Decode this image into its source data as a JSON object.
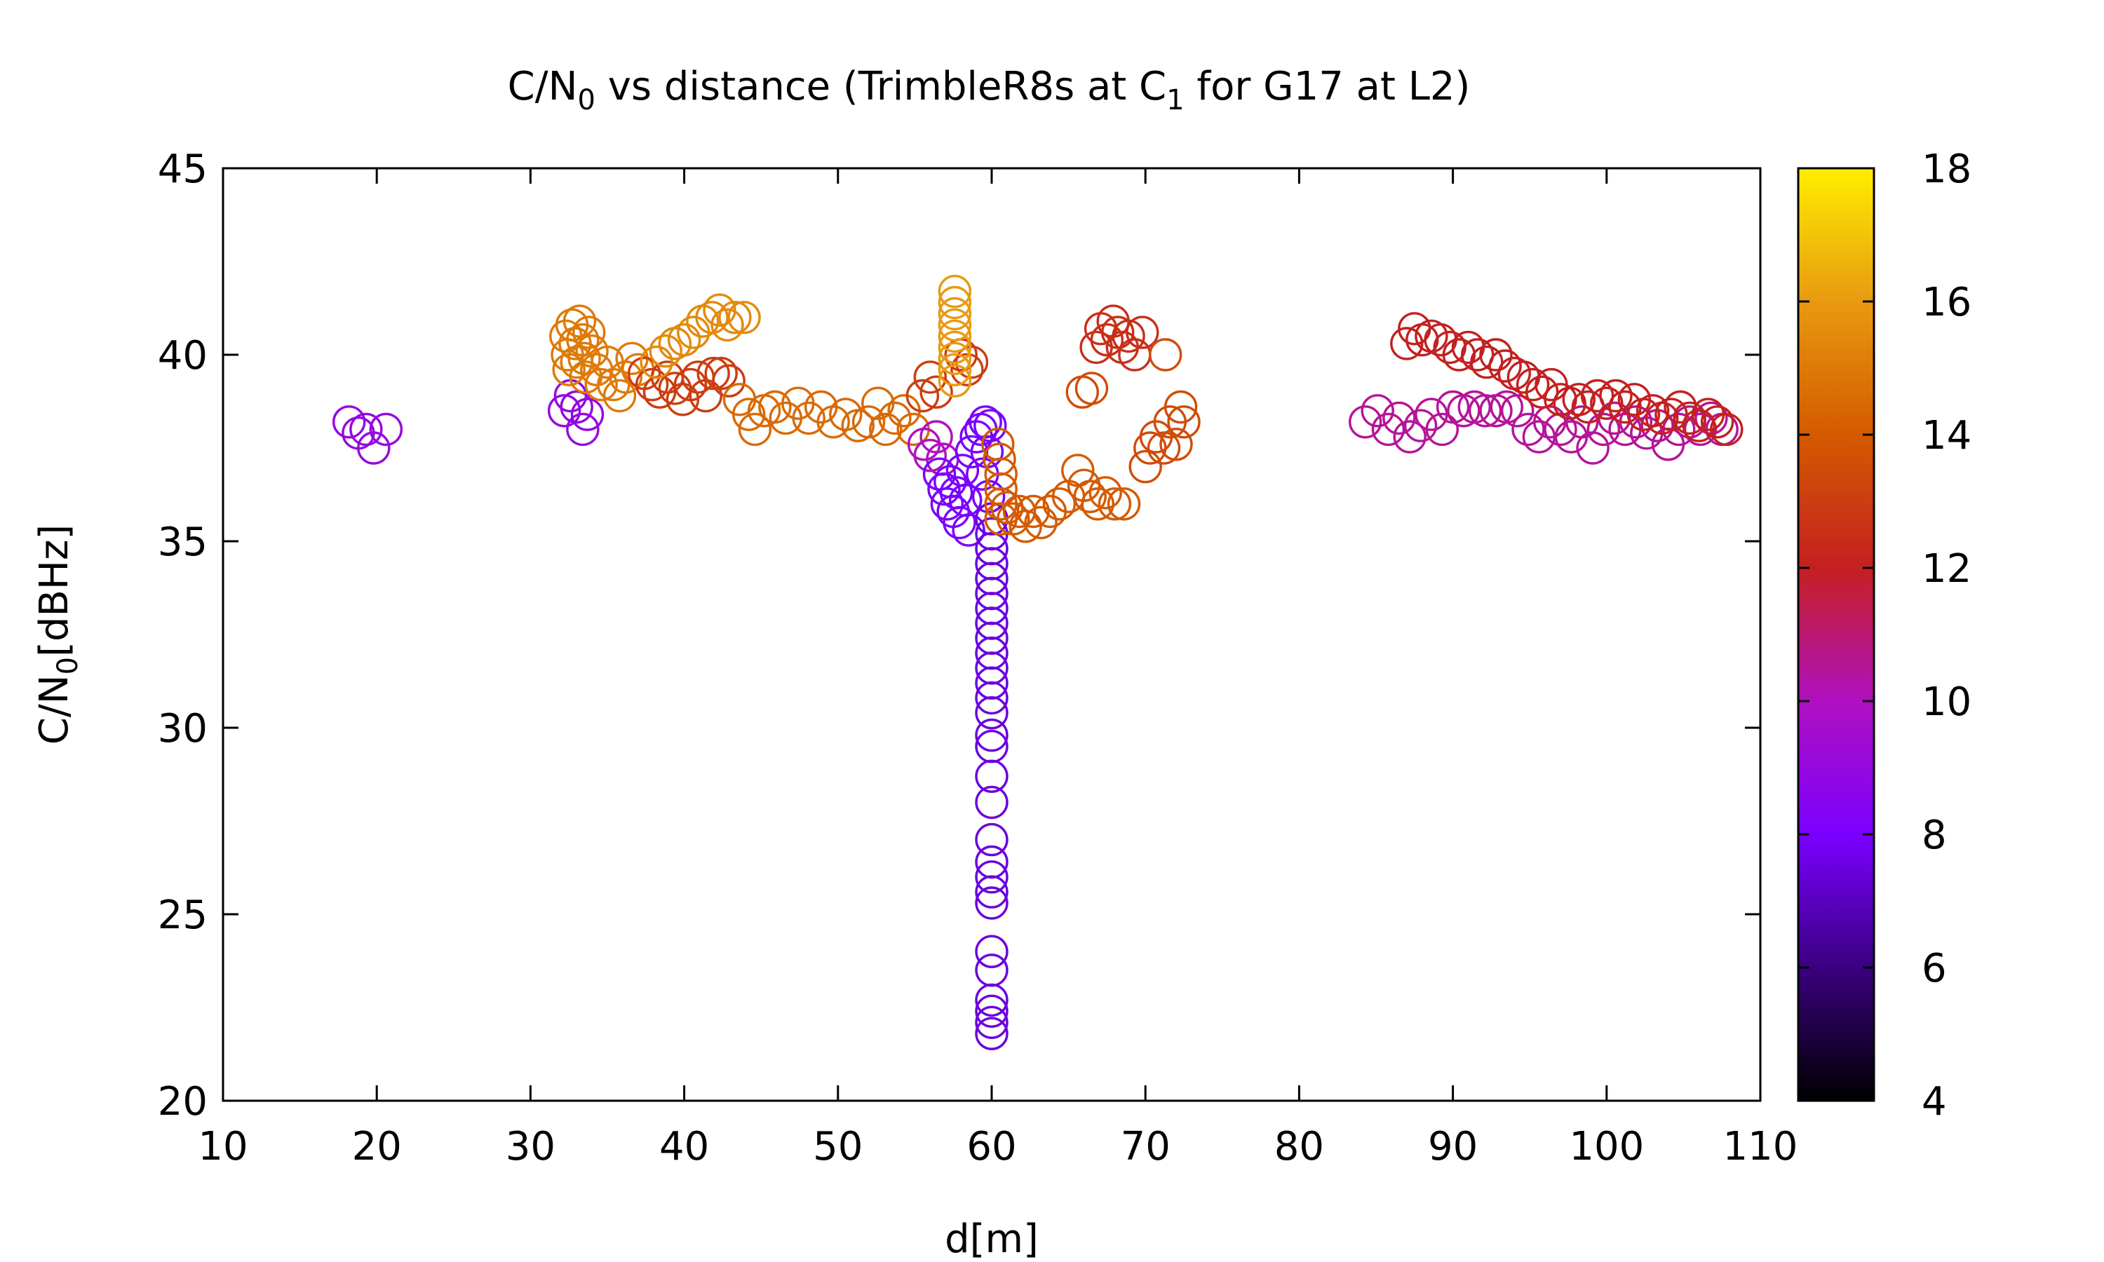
{
  "chart_data": {
    "type": "scatter",
    "title": {
      "prefix": "C/N",
      "prefix_sub": "0",
      "middle": " vs distance (TrimbleR8s at C",
      "middle_sub": "1",
      "suffix": " for G17 at L2)"
    },
    "xlabel": "d[m]",
    "ylabel": {
      "main": "C/N",
      "sub": "0",
      "rest": "[dBHz]"
    },
    "xlim": [
      10,
      110
    ],
    "ylim": [
      20,
      45
    ],
    "xticks": [
      "10",
      "20",
      "30",
      "40",
      "50",
      "60",
      "70",
      "80",
      "90",
      "100",
      "110"
    ],
    "yticks": [
      "20",
      "25",
      "30",
      "35",
      "40",
      "45"
    ],
    "colorbar": {
      "range": [
        4,
        18
      ],
      "ticks": [
        "4",
        "6",
        "8",
        "10",
        "12",
        "14",
        "16",
        "18"
      ],
      "palette": [
        "#000000",
        "#3a0080",
        "#7a00ff",
        "#b010c0",
        "#c42020",
        "#d45a00",
        "#e89a10",
        "#ffee00"
      ]
    },
    "grid": false,
    "legend": "none",
    "marker": "open-circle",
    "points": [
      {
        "x": 18.2,
        "y": 38.2,
        "c": 9.0
      },
      {
        "x": 18.8,
        "y": 37.9,
        "c": 9.0
      },
      {
        "x": 19.3,
        "y": 38.0,
        "c": 9.0
      },
      {
        "x": 19.8,
        "y": 37.5,
        "c": 9.0
      },
      {
        "x": 20.6,
        "y": 38.0,
        "c": 9.0
      },
      {
        "x": 32.2,
        "y": 38.5,
        "c": 9.0
      },
      {
        "x": 32.6,
        "y": 38.9,
        "c": 9.0
      },
      {
        "x": 33.0,
        "y": 38.6,
        "c": 9.0
      },
      {
        "x": 33.4,
        "y": 38.0,
        "c": 9.0
      },
      {
        "x": 33.7,
        "y": 38.4,
        "c": 9.0
      },
      {
        "x": 32.3,
        "y": 40.5,
        "c": 15.0
      },
      {
        "x": 32.4,
        "y": 40.0,
        "c": 15.0
      },
      {
        "x": 32.5,
        "y": 39.6,
        "c": 15.0
      },
      {
        "x": 32.7,
        "y": 40.8,
        "c": 15.0
      },
      {
        "x": 32.9,
        "y": 40.3,
        "c": 15.0
      },
      {
        "x": 33.0,
        "y": 39.8,
        "c": 15.0
      },
      {
        "x": 33.2,
        "y": 40.9,
        "c": 15.0
      },
      {
        "x": 33.4,
        "y": 40.4,
        "c": 15.0
      },
      {
        "x": 33.5,
        "y": 39.9,
        "c": 15.0
      },
      {
        "x": 33.6,
        "y": 39.4,
        "c": 15.0
      },
      {
        "x": 33.8,
        "y": 40.6,
        "c": 15.0
      },
      {
        "x": 34.0,
        "y": 40.1,
        "c": 15.0
      },
      {
        "x": 34.3,
        "y": 39.6,
        "c": 15.0
      },
      {
        "x": 34.6,
        "y": 39.2,
        "c": 15.0
      },
      {
        "x": 35.0,
        "y": 39.8,
        "c": 15.0
      },
      {
        "x": 35.4,
        "y": 39.2,
        "c": 15.0
      },
      {
        "x": 35.8,
        "y": 38.9,
        "c": 15.0
      },
      {
        "x": 36.2,
        "y": 39.4,
        "c": 15.0
      },
      {
        "x": 36.6,
        "y": 39.9,
        "c": 15.0
      },
      {
        "x": 37.0,
        "y": 39.6,
        "c": 15.0
      },
      {
        "x": 37.4,
        "y": 39.5,
        "c": 13.0
      },
      {
        "x": 37.9,
        "y": 39.2,
        "c": 13.0
      },
      {
        "x": 38.4,
        "y": 39.0,
        "c": 13.0
      },
      {
        "x": 38.9,
        "y": 39.4,
        "c": 13.0
      },
      {
        "x": 39.4,
        "y": 39.1,
        "c": 13.0
      },
      {
        "x": 39.9,
        "y": 38.8,
        "c": 13.0
      },
      {
        "x": 40.4,
        "y": 39.2,
        "c": 13.0
      },
      {
        "x": 40.9,
        "y": 39.4,
        "c": 13.0
      },
      {
        "x": 41.4,
        "y": 38.9,
        "c": 13.0
      },
      {
        "x": 41.9,
        "y": 39.5,
        "c": 13.0
      },
      {
        "x": 42.4,
        "y": 39.5,
        "c": 13.0
      },
      {
        "x": 42.9,
        "y": 39.3,
        "c": 13.0
      },
      {
        "x": 38.2,
        "y": 39.8,
        "c": 15.5
      },
      {
        "x": 38.8,
        "y": 40.1,
        "c": 15.5
      },
      {
        "x": 39.4,
        "y": 40.3,
        "c": 15.5
      },
      {
        "x": 40.0,
        "y": 40.4,
        "c": 15.5
      },
      {
        "x": 40.6,
        "y": 40.6,
        "c": 15.5
      },
      {
        "x": 41.2,
        "y": 40.9,
        "c": 15.5
      },
      {
        "x": 41.8,
        "y": 41.0,
        "c": 15.5
      },
      {
        "x": 42.3,
        "y": 41.2,
        "c": 15.5
      },
      {
        "x": 42.8,
        "y": 40.8,
        "c": 15.5
      },
      {
        "x": 43.3,
        "y": 41.0,
        "c": 15.5
      },
      {
        "x": 43.9,
        "y": 41.0,
        "c": 15.5
      },
      {
        "x": 43.6,
        "y": 38.8,
        "c": 14.5
      },
      {
        "x": 44.2,
        "y": 38.4,
        "c": 14.5
      },
      {
        "x": 44.6,
        "y": 38.0,
        "c": 14.5
      },
      {
        "x": 45.2,
        "y": 38.5,
        "c": 14.5
      },
      {
        "x": 45.9,
        "y": 38.6,
        "c": 14.5
      },
      {
        "x": 46.6,
        "y": 38.3,
        "c": 14.5
      },
      {
        "x": 47.4,
        "y": 38.7,
        "c": 14.5
      },
      {
        "x": 48.1,
        "y": 38.3,
        "c": 14.5
      },
      {
        "x": 48.9,
        "y": 38.6,
        "c": 14.5
      },
      {
        "x": 49.7,
        "y": 38.2,
        "c": 14.5
      },
      {
        "x": 50.5,
        "y": 38.4,
        "c": 14.5
      },
      {
        "x": 51.3,
        "y": 38.1,
        "c": 14.5
      },
      {
        "x": 52.0,
        "y": 38.2,
        "c": 14.5
      },
      {
        "x": 52.6,
        "y": 38.7,
        "c": 14.5
      },
      {
        "x": 53.1,
        "y": 38.0,
        "c": 14.5
      },
      {
        "x": 53.7,
        "y": 38.3,
        "c": 14.5
      },
      {
        "x": 54.3,
        "y": 38.5,
        "c": 14.5
      },
      {
        "x": 54.9,
        "y": 38.0,
        "c": 14.5
      },
      {
        "x": 55.5,
        "y": 38.9,
        "c": 13.0
      },
      {
        "x": 56.0,
        "y": 39.4,
        "c": 13.0
      },
      {
        "x": 56.4,
        "y": 39.0,
        "c": 13.0
      },
      {
        "x": 58.0,
        "y": 40.0,
        "c": 13.0
      },
      {
        "x": 58.4,
        "y": 39.6,
        "c": 13.0
      },
      {
        "x": 58.7,
        "y": 39.8,
        "c": 13.0
      },
      {
        "x": 57.6,
        "y": 41.7,
        "c": 16.0
      },
      {
        "x": 57.6,
        "y": 41.4,
        "c": 16.0
      },
      {
        "x": 57.6,
        "y": 41.1,
        "c": 16.0
      },
      {
        "x": 57.6,
        "y": 40.8,
        "c": 16.0
      },
      {
        "x": 57.6,
        "y": 40.5,
        "c": 16.0
      },
      {
        "x": 57.6,
        "y": 40.2,
        "c": 16.0
      },
      {
        "x": 57.6,
        "y": 39.9,
        "c": 16.0
      },
      {
        "x": 57.6,
        "y": 39.6,
        "c": 16.0
      },
      {
        "x": 57.6,
        "y": 39.3,
        "c": 16.0
      },
      {
        "x": 55.6,
        "y": 37.6,
        "c": 10.0
      },
      {
        "x": 56.0,
        "y": 37.3,
        "c": 10.0
      },
      {
        "x": 56.4,
        "y": 37.8,
        "c": 10.0
      },
      {
        "x": 56.8,
        "y": 37.2,
        "c": 10.0
      },
      {
        "x": 56.6,
        "y": 36.8,
        "c": 8.0
      },
      {
        "x": 56.9,
        "y": 36.4,
        "c": 8.0
      },
      {
        "x": 57.1,
        "y": 36.0,
        "c": 8.0
      },
      {
        "x": 57.3,
        "y": 36.6,
        "c": 8.0
      },
      {
        "x": 57.5,
        "y": 35.8,
        "c": 8.0
      },
      {
        "x": 57.7,
        "y": 36.3,
        "c": 8.0
      },
      {
        "x": 57.9,
        "y": 35.5,
        "c": 8.0
      },
      {
        "x": 58.1,
        "y": 36.9,
        "c": 8.0
      },
      {
        "x": 58.3,
        "y": 36.1,
        "c": 8.0
      },
      {
        "x": 58.5,
        "y": 35.3,
        "c": 8.0
      },
      {
        "x": 58.7,
        "y": 37.4,
        "c": 8.0
      },
      {
        "x": 59.0,
        "y": 37.8,
        "c": 8.0
      },
      {
        "x": 59.3,
        "y": 38.0,
        "c": 8.0
      },
      {
        "x": 59.6,
        "y": 38.2,
        "c": 8.0
      },
      {
        "x": 59.9,
        "y": 38.1,
        "c": 8.0
      },
      {
        "x": 59.7,
        "y": 37.4,
        "c": 8.0
      },
      {
        "x": 59.4,
        "y": 36.8,
        "c": 8.0
      },
      {
        "x": 59.8,
        "y": 36.2,
        "c": 8.0
      },
      {
        "x": 60.0,
        "y": 35.6,
        "c": 7.5
      },
      {
        "x": 60.0,
        "y": 35.2,
        "c": 7.5
      },
      {
        "x": 60.0,
        "y": 34.8,
        "c": 7.5
      },
      {
        "x": 60.0,
        "y": 34.4,
        "c": 7.5
      },
      {
        "x": 60.0,
        "y": 34.0,
        "c": 7.5
      },
      {
        "x": 60.0,
        "y": 33.6,
        "c": 7.5
      },
      {
        "x": 60.0,
        "y": 33.2,
        "c": 7.5
      },
      {
        "x": 60.0,
        "y": 32.8,
        "c": 7.5
      },
      {
        "x": 60.0,
        "y": 32.4,
        "c": 7.5
      },
      {
        "x": 60.0,
        "y": 32.0,
        "c": 7.5
      },
      {
        "x": 60.0,
        "y": 31.6,
        "c": 7.5
      },
      {
        "x": 60.0,
        "y": 31.2,
        "c": 7.5
      },
      {
        "x": 60.0,
        "y": 30.8,
        "c": 7.5
      },
      {
        "x": 60.0,
        "y": 30.4,
        "c": 7.5
      },
      {
        "x": 60.0,
        "y": 29.8,
        "c": 7.5
      },
      {
        "x": 60.0,
        "y": 29.5,
        "c": 7.5
      },
      {
        "x": 60.0,
        "y": 28.7,
        "c": 7.5
      },
      {
        "x": 60.0,
        "y": 28.0,
        "c": 7.5
      },
      {
        "x": 60.0,
        "y": 27.0,
        "c": 7.5
      },
      {
        "x": 60.0,
        "y": 26.4,
        "c": 7.5
      },
      {
        "x": 60.0,
        "y": 26.0,
        "c": 7.5
      },
      {
        "x": 60.0,
        "y": 25.6,
        "c": 7.5
      },
      {
        "x": 60.0,
        "y": 25.3,
        "c": 7.5
      },
      {
        "x": 60.0,
        "y": 24.0,
        "c": 7.5
      },
      {
        "x": 60.0,
        "y": 23.5,
        "c": 7.5
      },
      {
        "x": 60.0,
        "y": 22.7,
        "c": 7.5
      },
      {
        "x": 60.0,
        "y": 22.4,
        "c": 7.5
      },
      {
        "x": 60.0,
        "y": 22.1,
        "c": 7.5
      },
      {
        "x": 60.0,
        "y": 21.8,
        "c": 7.5
      },
      {
        "x": 60.4,
        "y": 37.6,
        "c": 14.0
      },
      {
        "x": 60.5,
        "y": 37.2,
        "c": 14.0
      },
      {
        "x": 60.6,
        "y": 36.8,
        "c": 14.0
      },
      {
        "x": 60.6,
        "y": 36.4,
        "c": 14.0
      },
      {
        "x": 60.6,
        "y": 36.0,
        "c": 14.0
      },
      {
        "x": 60.6,
        "y": 35.6,
        "c": 14.0
      },
      {
        "x": 61.0,
        "y": 35.9,
        "c": 14.0
      },
      {
        "x": 61.4,
        "y": 35.6,
        "c": 14.0
      },
      {
        "x": 61.8,
        "y": 35.8,
        "c": 14.0
      },
      {
        "x": 62.2,
        "y": 35.4,
        "c": 14.0
      },
      {
        "x": 62.7,
        "y": 35.8,
        "c": 14.0
      },
      {
        "x": 63.2,
        "y": 35.5,
        "c": 14.0
      },
      {
        "x": 63.8,
        "y": 35.8,
        "c": 14.0
      },
      {
        "x": 64.4,
        "y": 36.0,
        "c": 14.0
      },
      {
        "x": 65.0,
        "y": 36.2,
        "c": 14.0
      },
      {
        "x": 65.6,
        "y": 36.9,
        "c": 14.0
      },
      {
        "x": 66.0,
        "y": 36.5,
        "c": 14.0
      },
      {
        "x": 66.4,
        "y": 36.2,
        "c": 14.0
      },
      {
        "x": 66.9,
        "y": 36.0,
        "c": 14.0
      },
      {
        "x": 67.4,
        "y": 36.3,
        "c": 14.0
      },
      {
        "x": 68.0,
        "y": 36.0,
        "c": 14.0
      },
      {
        "x": 68.6,
        "y": 36.0,
        "c": 14.0
      },
      {
        "x": 65.9,
        "y": 39.0,
        "c": 13.5
      },
      {
        "x": 66.5,
        "y": 39.1,
        "c": 13.5
      },
      {
        "x": 66.8,
        "y": 40.2,
        "c": 12.5
      },
      {
        "x": 67.1,
        "y": 40.7,
        "c": 12.5
      },
      {
        "x": 67.5,
        "y": 40.4,
        "c": 12.5
      },
      {
        "x": 67.9,
        "y": 40.9,
        "c": 12.5
      },
      {
        "x": 68.2,
        "y": 40.6,
        "c": 12.5
      },
      {
        "x": 68.5,
        "y": 40.2,
        "c": 12.5
      },
      {
        "x": 68.9,
        "y": 40.5,
        "c": 12.5
      },
      {
        "x": 69.3,
        "y": 40.0,
        "c": 12.5
      },
      {
        "x": 69.8,
        "y": 40.6,
        "c": 12.5
      },
      {
        "x": 70.0,
        "y": 37.0,
        "c": 13.5
      },
      {
        "x": 70.3,
        "y": 37.5,
        "c": 13.5
      },
      {
        "x": 70.7,
        "y": 37.8,
        "c": 13.5
      },
      {
        "x": 71.2,
        "y": 37.5,
        "c": 13.5
      },
      {
        "x": 71.6,
        "y": 38.2,
        "c": 13.5
      },
      {
        "x": 72.0,
        "y": 37.6,
        "c": 13.5
      },
      {
        "x": 72.3,
        "y": 38.6,
        "c": 13.5
      },
      {
        "x": 72.5,
        "y": 38.2,
        "c": 13.5
      },
      {
        "x": 71.3,
        "y": 40.0,
        "c": 13.5
      },
      {
        "x": 84.3,
        "y": 38.2,
        "c": 10.5
      },
      {
        "x": 85.1,
        "y": 38.5,
        "c": 10.5
      },
      {
        "x": 85.8,
        "y": 38.0,
        "c": 10.5
      },
      {
        "x": 86.5,
        "y": 38.3,
        "c": 10.5
      },
      {
        "x": 87.2,
        "y": 37.8,
        "c": 10.5
      },
      {
        "x": 87.9,
        "y": 38.1,
        "c": 10.5
      },
      {
        "x": 88.6,
        "y": 38.4,
        "c": 10.5
      },
      {
        "x": 89.3,
        "y": 38.0,
        "c": 10.5
      },
      {
        "x": 90.0,
        "y": 38.6,
        "c": 10.5
      },
      {
        "x": 90.7,
        "y": 38.5,
        "c": 10.5
      },
      {
        "x": 91.4,
        "y": 38.6,
        "c": 10.5
      },
      {
        "x": 92.1,
        "y": 38.5,
        "c": 10.5
      },
      {
        "x": 92.8,
        "y": 38.5,
        "c": 10.5
      },
      {
        "x": 93.5,
        "y": 38.6,
        "c": 10.5
      },
      {
        "x": 94.2,
        "y": 38.5,
        "c": 10.5
      },
      {
        "x": 94.9,
        "y": 38.0,
        "c": 10.5
      },
      {
        "x": 95.6,
        "y": 37.8,
        "c": 10.5
      },
      {
        "x": 96.3,
        "y": 38.2,
        "c": 10.5
      },
      {
        "x": 97.0,
        "y": 38.0,
        "c": 10.5
      },
      {
        "x": 97.7,
        "y": 37.8,
        "c": 10.5
      },
      {
        "x": 98.4,
        "y": 38.2,
        "c": 10.5
      },
      {
        "x": 99.1,
        "y": 37.5,
        "c": 10.5
      },
      {
        "x": 99.8,
        "y": 38.0,
        "c": 10.5
      },
      {
        "x": 100.5,
        "y": 38.3,
        "c": 10.5
      },
      {
        "x": 101.2,
        "y": 38.0,
        "c": 10.5
      },
      {
        "x": 101.9,
        "y": 38.2,
        "c": 10.5
      },
      {
        "x": 102.6,
        "y": 37.9,
        "c": 10.5
      },
      {
        "x": 103.3,
        "y": 38.1,
        "c": 10.5
      },
      {
        "x": 104.0,
        "y": 37.6,
        "c": 10.5
      },
      {
        "x": 104.7,
        "y": 38.0,
        "c": 10.5
      },
      {
        "x": 105.4,
        "y": 38.2,
        "c": 10.5
      },
      {
        "x": 106.1,
        "y": 38.0,
        "c": 10.5
      },
      {
        "x": 106.8,
        "y": 38.3,
        "c": 10.5
      },
      {
        "x": 107.5,
        "y": 38.0,
        "c": 10.5
      },
      {
        "x": 87.0,
        "y": 40.3,
        "c": 12.0
      },
      {
        "x": 87.5,
        "y": 40.7,
        "c": 12.0
      },
      {
        "x": 88.0,
        "y": 40.4,
        "c": 12.0
      },
      {
        "x": 88.6,
        "y": 40.5,
        "c": 12.0
      },
      {
        "x": 89.2,
        "y": 40.4,
        "c": 12.0
      },
      {
        "x": 89.8,
        "y": 40.2,
        "c": 12.0
      },
      {
        "x": 90.4,
        "y": 40.0,
        "c": 12.0
      },
      {
        "x": 91.0,
        "y": 40.2,
        "c": 12.0
      },
      {
        "x": 91.6,
        "y": 40.0,
        "c": 12.0
      },
      {
        "x": 92.2,
        "y": 39.8,
        "c": 12.0
      },
      {
        "x": 92.8,
        "y": 40.0,
        "c": 12.0
      },
      {
        "x": 93.4,
        "y": 39.7,
        "c": 12.0
      },
      {
        "x": 94.0,
        "y": 39.5,
        "c": 12.0
      },
      {
        "x": 94.6,
        "y": 39.4,
        "c": 12.0
      },
      {
        "x": 95.2,
        "y": 39.2,
        "c": 12.0
      },
      {
        "x": 95.8,
        "y": 39.0,
        "c": 12.0
      },
      {
        "x": 96.4,
        "y": 39.2,
        "c": 12.0
      },
      {
        "x": 97.0,
        "y": 38.8,
        "c": 12.0
      },
      {
        "x": 97.6,
        "y": 38.7,
        "c": 12.0
      },
      {
        "x": 98.2,
        "y": 38.8,
        "c": 12.0
      },
      {
        "x": 98.8,
        "y": 38.6,
        "c": 12.0
      },
      {
        "x": 99.4,
        "y": 38.9,
        "c": 12.0
      },
      {
        "x": 100.0,
        "y": 38.7,
        "c": 12.0
      },
      {
        "x": 100.6,
        "y": 38.9,
        "c": 12.0
      },
      {
        "x": 101.2,
        "y": 38.6,
        "c": 12.0
      },
      {
        "x": 101.8,
        "y": 38.8,
        "c": 12.0
      },
      {
        "x": 102.4,
        "y": 38.4,
        "c": 12.0
      },
      {
        "x": 103.0,
        "y": 38.5,
        "c": 12.0
      },
      {
        "x": 103.6,
        "y": 38.3,
        "c": 12.0
      },
      {
        "x": 104.2,
        "y": 38.4,
        "c": 12.0
      },
      {
        "x": 104.8,
        "y": 38.6,
        "c": 12.0
      },
      {
        "x": 105.4,
        "y": 38.3,
        "c": 12.0
      },
      {
        "x": 106.0,
        "y": 38.1,
        "c": 12.0
      },
      {
        "x": 106.6,
        "y": 38.4,
        "c": 12.0
      },
      {
        "x": 107.2,
        "y": 38.2,
        "c": 12.0
      },
      {
        "x": 107.8,
        "y": 38.0,
        "c": 12.0
      }
    ]
  }
}
